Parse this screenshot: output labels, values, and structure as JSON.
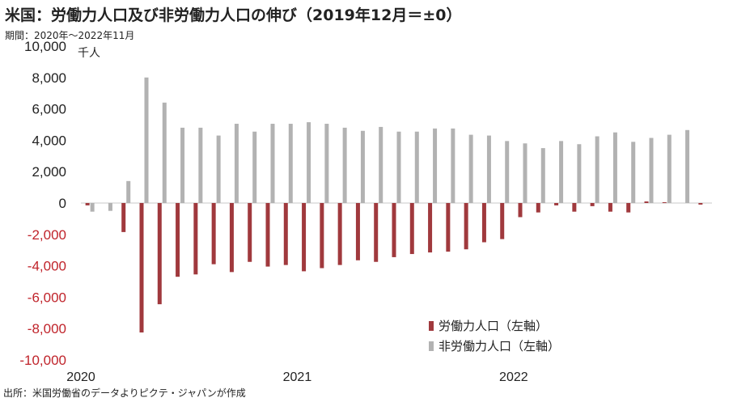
{
  "header": {
    "title": "米国：労働力人口及び非労働力人口の伸び（2019年12月＝±0）",
    "subtitle": "期間：2020年～2022年11月"
  },
  "footer": {
    "source": "出所：米国労働省のデータよりピクテ・ジャパンが作成"
  },
  "colors": {
    "labor": "#a0393d",
    "nonlabor": "#b2b2b2",
    "negative_tick": "#c0242b",
    "positive_tick": "#222222"
  },
  "chart_data": {
    "type": "bar",
    "unit": "千人",
    "ylim": [
      -10000,
      10000
    ],
    "yticks": [
      10000,
      8000,
      6000,
      4000,
      2000,
      0,
      -2000,
      -4000,
      -6000,
      -8000,
      -10000
    ],
    "ytick_labels": [
      "10,000",
      "8,000",
      "6,000",
      "4,000",
      "2,000",
      "0",
      "-2,000",
      "-4,000",
      "-6,000",
      "-8,000",
      "-10,000"
    ],
    "year_labels": [
      {
        "label": "2020",
        "index": 0
      },
      {
        "label": "2021",
        "index": 12
      },
      {
        "label": "2022",
        "index": 24
      }
    ],
    "categories": [
      "2020-01",
      "2020-02",
      "2020-03",
      "2020-04",
      "2020-05",
      "2020-06",
      "2020-07",
      "2020-08",
      "2020-09",
      "2020-10",
      "2020-11",
      "2020-12",
      "2021-01",
      "2021-02",
      "2021-03",
      "2021-04",
      "2021-05",
      "2021-06",
      "2021-07",
      "2021-08",
      "2021-09",
      "2021-10",
      "2021-11",
      "2021-12",
      "2022-01",
      "2022-02",
      "2022-03",
      "2022-04",
      "2022-05",
      "2022-06",
      "2022-07",
      "2022-08",
      "2022-09",
      "2022-10",
      "2022-11"
    ],
    "series": [
      {
        "name": "労働力人口（左軸）",
        "values": [
          -150,
          0,
          -1850,
          -8250,
          -6450,
          -4700,
          -4550,
          -3900,
          -4400,
          -3750,
          -4050,
          -3950,
          -4350,
          -4150,
          -3950,
          -3650,
          -3750,
          -3450,
          -3250,
          -3150,
          -3100,
          -2950,
          -2500,
          -2300,
          -900,
          -600,
          -150,
          -550,
          -200,
          -550,
          -600,
          100,
          50,
          0,
          -100
        ]
      },
      {
        "name": "非労働力人口（左軸）",
        "values": [
          -550,
          -500,
          1400,
          8000,
          6400,
          4800,
          4800,
          4300,
          5050,
          4550,
          5050,
          5050,
          5150,
          5050,
          4800,
          4600,
          4850,
          4550,
          4550,
          4750,
          4750,
          4350,
          4300,
          3950,
          3800,
          3500,
          3950,
          3750,
          4250,
          4500,
          3900,
          4150,
          4350,
          4650,
          0
        ]
      }
    ],
    "legend_position": "bottom-right",
    "grid": false
  }
}
